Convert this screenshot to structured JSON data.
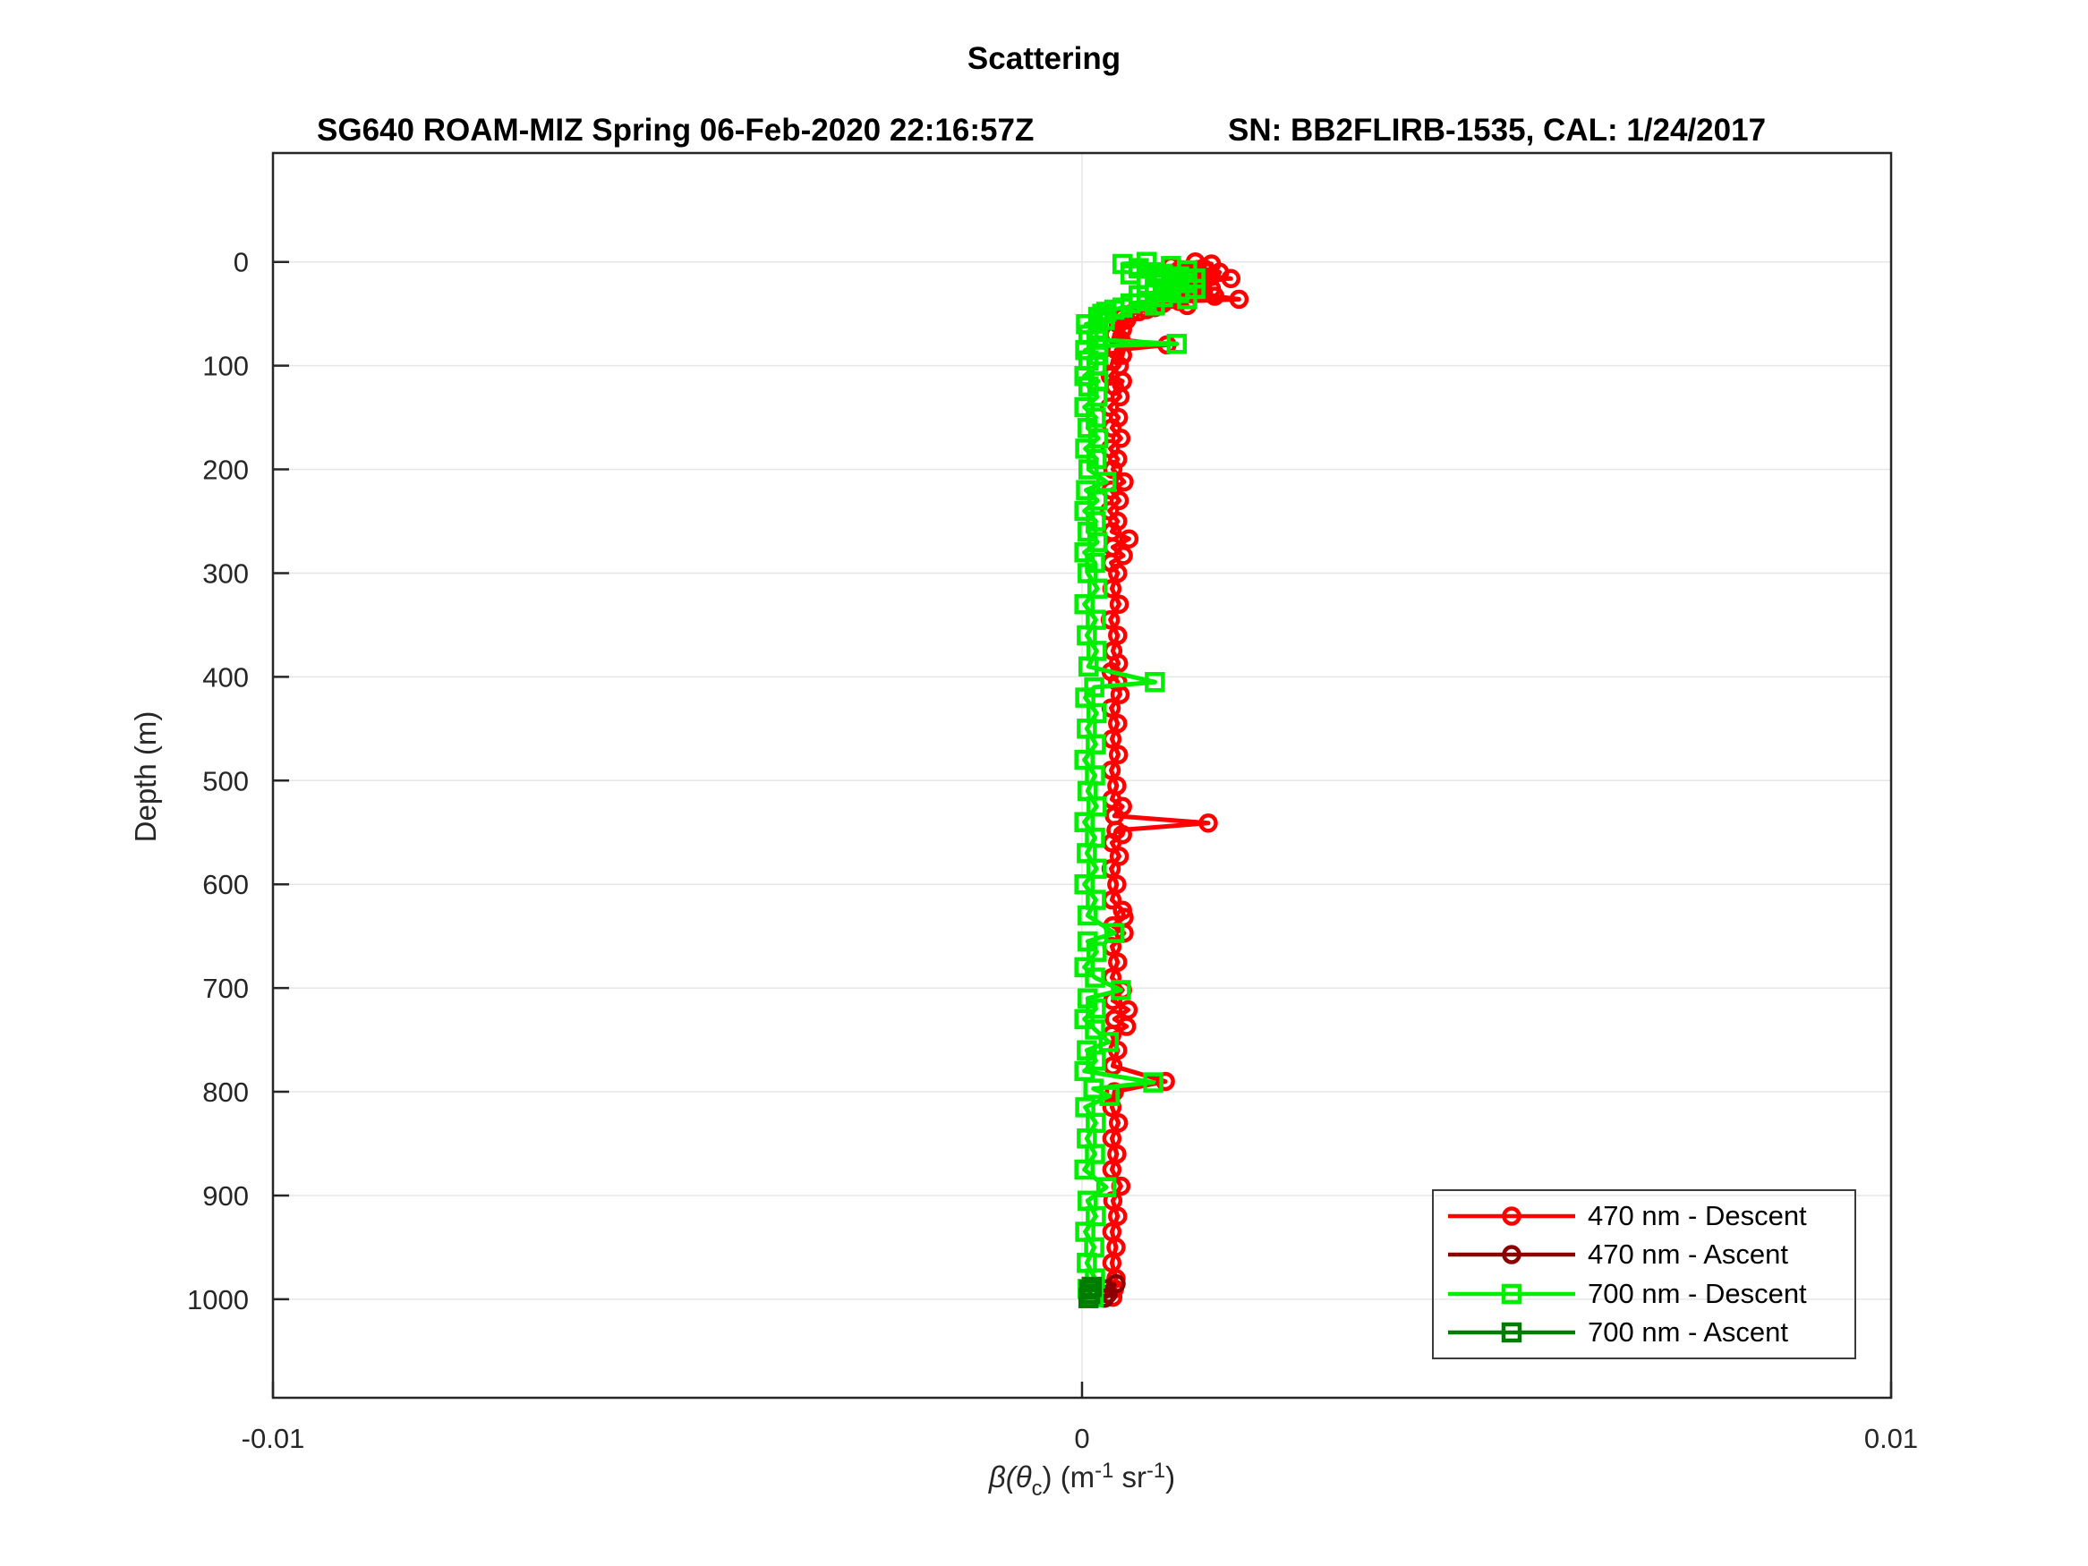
{
  "header": {
    "title": "Scattering",
    "subtitle_left": "SG640 ROAM-MIZ Spring 06-Feb-2020 22:16:57Z",
    "subtitle_right": "SN: BB2FLIRB-1535, CAL: 1/24/2017"
  },
  "axes": {
    "ylabel": "Depth (m)",
    "xlabel_parts": {
      "p1": "β(θ",
      "sub": "c",
      "p2": ") (m",
      "sup1": "-1",
      "p3": " sr",
      "sup2": "-1",
      "p4": ")"
    }
  },
  "chart_data": {
    "type": "line",
    "title": "Scattering",
    "xlabel": "beta(theta_c) (m^-1 sr^-1)",
    "ylabel": "Depth (m)",
    "xlim": [
      -0.01,
      0.01
    ],
    "ylim_depth": [
      -105,
      1095
    ],
    "y_axis_reversed": true,
    "grid": true,
    "frame_color": "#262626",
    "grid_color": "#e6e6e6",
    "xticks": [
      {
        "v": -0.01,
        "label": "-0.01"
      },
      {
        "v": 0,
        "label": "0"
      },
      {
        "v": 0.01,
        "label": "0.01"
      }
    ],
    "yticks": [
      {
        "v": 0,
        "label": "0"
      },
      {
        "v": 100,
        "label": "100"
      },
      {
        "v": 200,
        "label": "200"
      },
      {
        "v": 300,
        "label": "300"
      },
      {
        "v": 400,
        "label": "400"
      },
      {
        "v": 500,
        "label": "500"
      },
      {
        "v": 600,
        "label": "600"
      },
      {
        "v": 700,
        "label": "700"
      },
      {
        "v": 800,
        "label": "800"
      },
      {
        "v": 900,
        "label": "900"
      },
      {
        "v": 1000,
        "label": "1000"
      }
    ],
    "legend_position": "bottom-right",
    "series": [
      {
        "name": "470 nm - Descent",
        "color": "#ff0000",
        "marker": "circle",
        "points": [
          [
            0,
            0.0014
          ],
          [
            2,
            0.0016
          ],
          [
            4,
            0.0011
          ],
          [
            6,
            0.0015
          ],
          [
            8,
            0.0012
          ],
          [
            10,
            0.0017
          ],
          [
            12,
            0.0013
          ],
          [
            14,
            0.0016
          ],
          [
            16,
            0.00184
          ],
          [
            18,
            0.0012
          ],
          [
            20,
            0.0015
          ],
          [
            22,
            0.0011
          ],
          [
            24,
            0.0014
          ],
          [
            26,
            0.0016
          ],
          [
            28,
            0.0012
          ],
          [
            30,
            0.0015
          ],
          [
            33,
            0.00164
          ],
          [
            36,
            0.00194
          ],
          [
            38,
            0.0012
          ],
          [
            40,
            0.001
          ],
          [
            42,
            0.0013
          ],
          [
            44,
            0.0009
          ],
          [
            46,
            0.0008
          ],
          [
            48,
            0.0007
          ],
          [
            50,
            0.0006
          ],
          [
            53,
            0.0005
          ],
          [
            56,
            0.00055
          ],
          [
            60,
            0.00045
          ],
          [
            65,
            0.0005
          ],
          [
            70,
            0.0004
          ],
          [
            75,
            0.00048
          ],
          [
            80,
            0.00105
          ],
          [
            85,
            0.00042
          ],
          [
            90,
            0.0005
          ],
          [
            95,
            0.00038
          ],
          [
            100,
            0.00046
          ],
          [
            110,
            0.00035
          ],
          [
            115,
            0.0005
          ],
          [
            120,
            0.0004
          ],
          [
            130,
            0.00047
          ],
          [
            140,
            0.00034
          ],
          [
            150,
            0.00045
          ],
          [
            160,
            0.00037
          ],
          [
            170,
            0.00048
          ],
          [
            180,
            0.00035
          ],
          [
            190,
            0.00044
          ],
          [
            200,
            0.00038
          ],
          [
            212,
            0.00052
          ],
          [
            220,
            0.00036
          ],
          [
            230,
            0.00046
          ],
          [
            240,
            0.00034
          ],
          [
            250,
            0.00044
          ],
          [
            260,
            0.00037
          ],
          [
            267,
            0.00058
          ],
          [
            275,
            0.00038
          ],
          [
            283,
            0.00051
          ],
          [
            290,
            0.00036
          ],
          [
            300,
            0.00044
          ],
          [
            315,
            0.00037
          ],
          [
            330,
            0.00046
          ],
          [
            345,
            0.00035
          ],
          [
            360,
            0.00044
          ],
          [
            375,
            0.00038
          ],
          [
            387,
            0.00045
          ],
          [
            395,
            0.00036
          ],
          [
            405,
            0.00044
          ],
          [
            417,
            0.00047
          ],
          [
            430,
            0.00036
          ],
          [
            445,
            0.00044
          ],
          [
            460,
            0.00037
          ],
          [
            475,
            0.00045
          ],
          [
            490,
            0.00036
          ],
          [
            505,
            0.00043
          ],
          [
            518,
            0.00037
          ],
          [
            525,
            0.0005
          ],
          [
            534,
            0.0004
          ],
          [
            541,
            0.00156
          ],
          [
            548,
            0.00042
          ],
          [
            552,
            0.0005
          ],
          [
            560,
            0.00037
          ],
          [
            573,
            0.00046
          ],
          [
            585,
            0.00036
          ],
          [
            600,
            0.00043
          ],
          [
            615,
            0.00037
          ],
          [
            625,
            0.0005
          ],
          [
            632,
            0.00052
          ],
          [
            640,
            0.00038
          ],
          [
            647,
            0.00052
          ],
          [
            660,
            0.00037
          ],
          [
            675,
            0.00044
          ],
          [
            690,
            0.00037
          ],
          [
            702,
            0.0005
          ],
          [
            712,
            0.00038
          ],
          [
            721,
            0.00057
          ],
          [
            730,
            0.0004
          ],
          [
            737,
            0.00055
          ],
          [
            745,
            0.00037
          ],
          [
            760,
            0.00044
          ],
          [
            775,
            0.00038
          ],
          [
            790,
            0.00103
          ],
          [
            800,
            0.0004
          ],
          [
            815,
            0.00037
          ],
          [
            830,
            0.00045
          ],
          [
            845,
            0.00037
          ],
          [
            860,
            0.00043
          ],
          [
            875,
            0.00037
          ],
          [
            891,
            0.00048
          ],
          [
            905,
            0.00038
          ],
          [
            920,
            0.00044
          ],
          [
            935,
            0.00037
          ],
          [
            950,
            0.00042
          ],
          [
            965,
            0.00037
          ],
          [
            980,
            0.00042
          ],
          [
            990,
            0.0004
          ],
          [
            998,
            0.00038
          ]
        ]
      },
      {
        "name": "470 nm - Ascent",
        "color": "#8b0000",
        "marker": "circle",
        "points": [
          [
            985,
            0.00042
          ],
          [
            990,
            0.0003
          ],
          [
            995,
            0.00032
          ],
          [
            999,
            0.00028
          ]
        ]
      },
      {
        "name": "700 nm - Descent",
        "color": "#00ee00",
        "marker": "square",
        "points": [
          [
            0,
            0.0008
          ],
          [
            2,
            0.0005
          ],
          [
            4,
            0.0011
          ],
          [
            6,
            0.0007
          ],
          [
            8,
            0.0013
          ],
          [
            10,
            0.0009
          ],
          [
            12,
            0.0006
          ],
          [
            14,
            0.0012
          ],
          [
            16,
            0.0014
          ],
          [
            18,
            0.001
          ],
          [
            20,
            0.0013
          ],
          [
            22,
            0.0008
          ],
          [
            24,
            0.0011
          ],
          [
            26,
            0.0014
          ],
          [
            28,
            0.0009
          ],
          [
            30,
            0.0012
          ],
          [
            32,
            0.0007
          ],
          [
            34,
            0.001
          ],
          [
            36,
            0.0013
          ],
          [
            38,
            0.0008
          ],
          [
            40,
            0.0006
          ],
          [
            42,
            0.0009
          ],
          [
            44,
            0.0005
          ],
          [
            46,
            0.0004
          ],
          [
            48,
            0.0003
          ],
          [
            50,
            0.00025
          ],
          [
            53,
            0.0002
          ],
          [
            56,
            0.00028
          ],
          [
            60,
            5e-05
          ],
          [
            65,
            0.0002
          ],
          [
            70,
            8e-05
          ],
          [
            75,
            0.00018
          ],
          [
            79,
            0.00117
          ],
          [
            81,
            0.0002
          ],
          [
            85,
            4e-05
          ],
          [
            90,
            0.0002
          ],
          [
            95,
            8e-05
          ],
          [
            100,
            0.00018
          ],
          [
            110,
            3e-05
          ],
          [
            115,
            0.0002
          ],
          [
            120,
            8e-05
          ],
          [
            130,
            0.00019
          ],
          [
            140,
            3e-05
          ],
          [
            150,
            0.00017
          ],
          [
            160,
            7e-05
          ],
          [
            170,
            0.0002
          ],
          [
            180,
            4e-05
          ],
          [
            190,
            0.00018
          ],
          [
            200,
            8e-05
          ],
          [
            212,
            0.0003
          ],
          [
            220,
            5e-05
          ],
          [
            230,
            0.00019
          ],
          [
            240,
            3e-05
          ],
          [
            250,
            0.00017
          ],
          [
            260,
            7e-05
          ],
          [
            270,
            0.00019
          ],
          [
            280,
            3e-05
          ],
          [
            290,
            0.00016
          ],
          [
            300,
            7e-05
          ],
          [
            315,
            0.00019
          ],
          [
            330,
            3e-05
          ],
          [
            345,
            0.00017
          ],
          [
            360,
            6e-05
          ],
          [
            375,
            0.00018
          ],
          [
            390,
            8e-05
          ],
          [
            405,
            0.0009
          ],
          [
            410,
            0.00015
          ],
          [
            420,
            4e-05
          ],
          [
            435,
            0.00018
          ],
          [
            450,
            6e-05
          ],
          [
            465,
            0.00017
          ],
          [
            480,
            3e-05
          ],
          [
            495,
            0.00016
          ],
          [
            510,
            7e-05
          ],
          [
            525,
            0.00018
          ],
          [
            540,
            3e-05
          ],
          [
            555,
            0.00016
          ],
          [
            570,
            6e-05
          ],
          [
            585,
            0.00018
          ],
          [
            600,
            3e-05
          ],
          [
            615,
            0.00017
          ],
          [
            630,
            7e-05
          ],
          [
            647,
            0.0004
          ],
          [
            655,
            7e-05
          ],
          [
            665,
            0.00018
          ],
          [
            680,
            3e-05
          ],
          [
            690,
            0.00016
          ],
          [
            702,
            0.00048
          ],
          [
            710,
            7e-05
          ],
          [
            720,
            0.00017
          ],
          [
            730,
            3e-05
          ],
          [
            740,
            0.00016
          ],
          [
            752,
            0.00033
          ],
          [
            760,
            6e-05
          ],
          [
            770,
            0.00017
          ],
          [
            780,
            3e-05
          ],
          [
            791,
            0.00088
          ],
          [
            797,
            0.00014
          ],
          [
            804,
            0.00034
          ],
          [
            815,
            4e-05
          ],
          [
            830,
            0.00017
          ],
          [
            845,
            6e-05
          ],
          [
            860,
            0.00016
          ],
          [
            875,
            3e-05
          ],
          [
            892,
            0.0003
          ],
          [
            905,
            7e-05
          ],
          [
            920,
            0.00017
          ],
          [
            935,
            4e-05
          ],
          [
            950,
            0.00015
          ],
          [
            965,
            6e-05
          ],
          [
            980,
            0.00016
          ],
          [
            990,
            7e-05
          ],
          [
            998,
            0.00014
          ]
        ]
      },
      {
        "name": "700 nm - Ascent",
        "color": "#007d00",
        "marker": "square",
        "points": [
          [
            988,
            0.00012
          ],
          [
            991,
            9e-05
          ],
          [
            995,
            0.0001
          ],
          [
            999,
            8e-05
          ]
        ]
      }
    ]
  }
}
